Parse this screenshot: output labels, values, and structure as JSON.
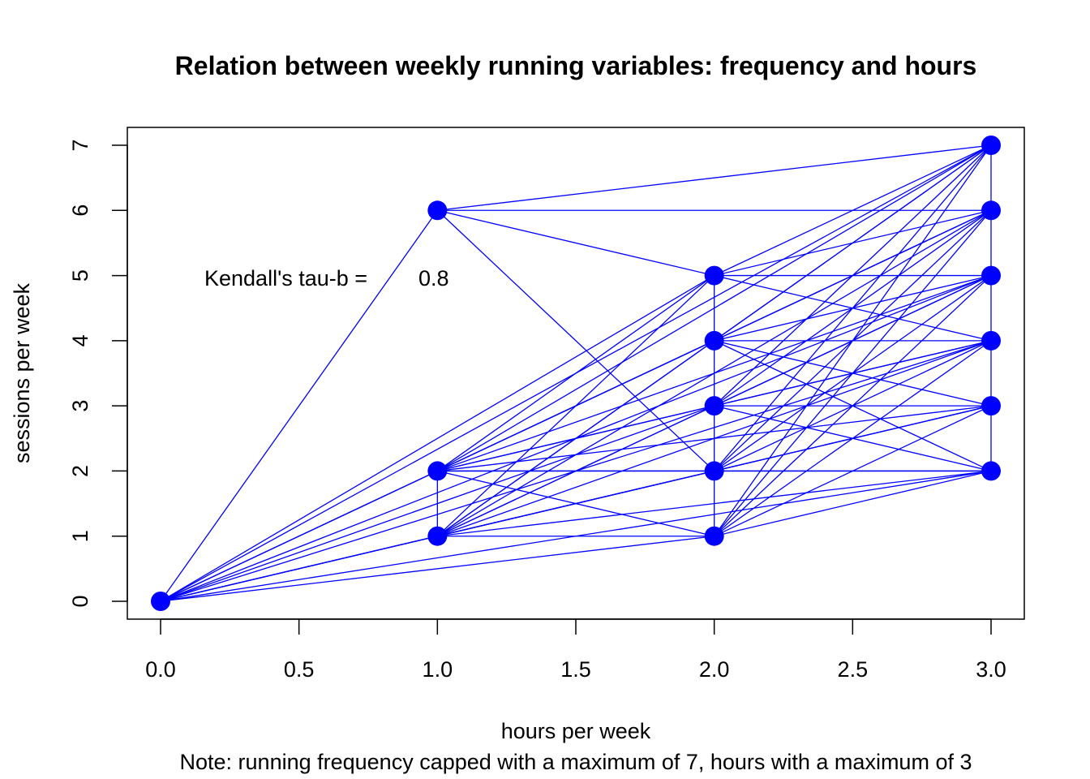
{
  "chart_data": {
    "type": "scatter",
    "title": "Relation between weekly running variables: frequency and hours",
    "xlabel": "hours per week",
    "ylabel": "sessions per week",
    "note": "Note: running frequency capped with a maximum of 7, hours with a maximum of 3",
    "annotation": {
      "label": "Kendall's tau-b =",
      "value": "0.8"
    },
    "xlim": [
      0,
      3
    ],
    "ylim": [
      0,
      7
    ],
    "x_ticks": [
      "0.0",
      "0.5",
      "1.0",
      "1.5",
      "2.0",
      "2.5",
      "3.0"
    ],
    "y_ticks": [
      "0",
      "1",
      "2",
      "3",
      "4",
      "5",
      "6",
      "7"
    ],
    "points": [
      {
        "x": 0,
        "y": 0
      },
      {
        "x": 1,
        "y": 1
      },
      {
        "x": 1,
        "y": 2
      },
      {
        "x": 1,
        "y": 6
      },
      {
        "x": 2,
        "y": 1
      },
      {
        "x": 2,
        "y": 2
      },
      {
        "x": 2,
        "y": 3
      },
      {
        "x": 2,
        "y": 4
      },
      {
        "x": 2,
        "y": 5
      },
      {
        "x": 3,
        "y": 2
      },
      {
        "x": 3,
        "y": 3
      },
      {
        "x": 3,
        "y": 4
      },
      {
        "x": 3,
        "y": 5
      },
      {
        "x": 3,
        "y": 6
      },
      {
        "x": 3,
        "y": 7
      }
    ],
    "point_color": "#0000ff",
    "line_color": "#0000ff"
  }
}
